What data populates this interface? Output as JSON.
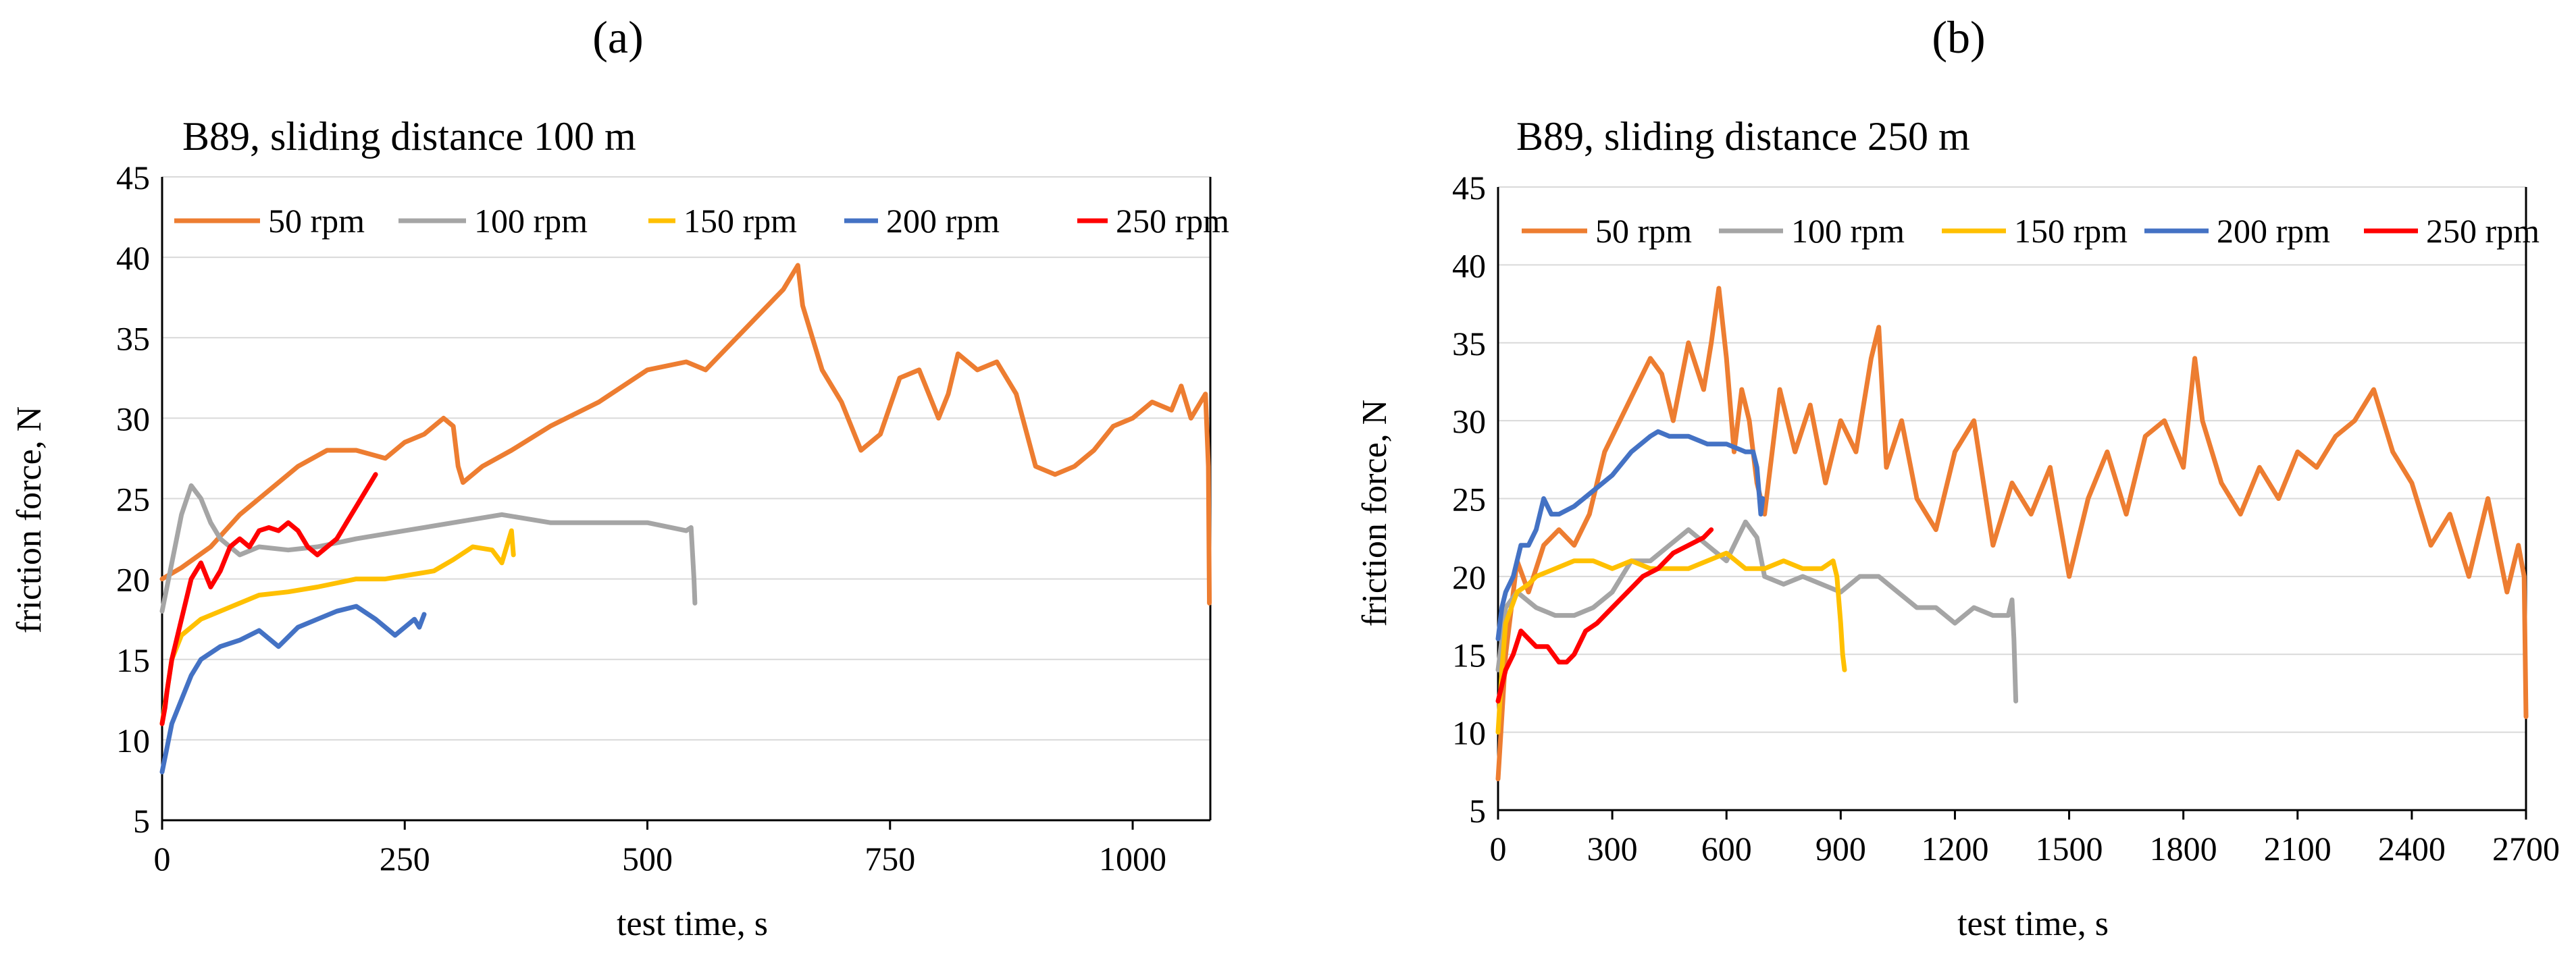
{
  "colors": {
    "50 rpm": "#ed7d31",
    "100 rpm": "#a5a5a5",
    "150 rpm": "#ffc000",
    "200 rpm": "#4472c4",
    "250 rpm": "#ff0000",
    "grid": "#d9d9d9",
    "axis": "#000000"
  },
  "chart_data": [
    {
      "type": "line",
      "panel_label": "(a)",
      "title": "B89, sliding distance 100 m",
      "xlabel": "test time, s",
      "ylabel": "friction force, N",
      "xlim": [
        0,
        1080
      ],
      "ylim": [
        5,
        45
      ],
      "xticks": [
        0,
        250,
        500,
        750,
        1000
      ],
      "xtick_labels": [
        "0",
        "250",
        "500",
        "750",
        "1000"
      ],
      "yticks": [
        5,
        10,
        15,
        20,
        25,
        30,
        35,
        40,
        45
      ],
      "ytick_labels": [
        "5",
        "10",
        "15",
        "20",
        "25",
        "30",
        "35",
        "40",
        "45"
      ],
      "grid": "horizontal",
      "legend": "top",
      "series": [
        {
          "name": "50 rpm",
          "color_key": "50 rpm",
          "x": [
            0,
            20,
            50,
            80,
            110,
            140,
            170,
            200,
            230,
            250,
            270,
            290,
            300,
            305,
            310,
            330,
            360,
            400,
            450,
            500,
            540,
            560,
            600,
            640,
            655,
            660,
            670,
            680,
            700,
            720,
            740,
            760,
            780,
            800,
            810,
            820,
            840,
            860,
            880,
            900,
            920,
            940,
            960,
            980,
            1000,
            1020,
            1040,
            1050,
            1060,
            1070,
            1075,
            1078,
            1079
          ],
          "y": [
            20,
            20.7,
            22,
            24,
            25.5,
            27,
            28,
            28,
            27.5,
            28.5,
            29,
            30,
            29.5,
            27,
            26,
            27,
            28,
            29.5,
            31,
            33,
            33.5,
            33,
            35.5,
            38,
            39.5,
            37,
            35,
            33,
            31,
            28,
            29,
            32.5,
            33,
            30,
            31.5,
            34,
            33,
            33.5,
            31.5,
            27,
            26.5,
            27,
            28,
            29.5,
            30,
            31,
            30.5,
            32,
            30,
            31,
            31.5,
            27,
            18.5
          ]
        },
        {
          "name": "100 rpm",
          "color_key": "100 rpm",
          "x": [
            0,
            10,
            20,
            30,
            40,
            50,
            60,
            80,
            100,
            130,
            160,
            200,
            250,
            300,
            350,
            400,
            450,
            500,
            540,
            545,
            548,
            549
          ],
          "y": [
            18,
            21,
            24,
            25.8,
            25,
            23.5,
            22.5,
            21.5,
            22,
            21.8,
            22,
            22.5,
            23,
            23.5,
            24,
            23.5,
            23.5,
            23.5,
            23,
            23.2,
            20,
            18.5
          ]
        },
        {
          "name": "150 rpm",
          "color_key": "150 rpm",
          "x": [
            0,
            5,
            10,
            20,
            40,
            60,
            80,
            100,
            130,
            160,
            200,
            230,
            260,
            280,
            300,
            320,
            340,
            350,
            355,
            360,
            362
          ],
          "y": [
            11,
            13,
            15,
            16.5,
            17.5,
            18,
            18.5,
            19,
            19.2,
            19.5,
            20,
            20,
            20.3,
            20.5,
            21.2,
            22,
            21.8,
            21,
            22,
            23,
            21.5
          ]
        },
        {
          "name": "200 rpm",
          "color_key": "200 rpm",
          "x": [
            0,
            5,
            10,
            20,
            30,
            40,
            60,
            80,
            100,
            120,
            140,
            160,
            180,
            200,
            220,
            240,
            250,
            260,
            265,
            270
          ],
          "y": [
            8,
            9.5,
            11,
            12.5,
            14,
            15,
            15.8,
            16.2,
            16.8,
            15.8,
            17,
            17.5,
            18,
            18.3,
            17.5,
            16.5,
            17,
            17.5,
            17,
            17.8
          ]
        },
        {
          "name": "250 rpm",
          "color_key": "250 rpm",
          "x": [
            0,
            3,
            5,
            10,
            20,
            30,
            40,
            50,
            60,
            70,
            80,
            90,
            100,
            110,
            120,
            130,
            140,
            150,
            160,
            170,
            180,
            190,
            200,
            210,
            220
          ],
          "y": [
            11,
            12,
            13,
            15,
            17.5,
            20,
            21,
            19.5,
            20.5,
            22,
            22.5,
            22,
            23,
            23.2,
            23,
            23.5,
            23,
            22,
            21.5,
            22,
            22.5,
            23.5,
            24.5,
            25.5,
            26.5
          ]
        }
      ]
    },
    {
      "type": "line",
      "panel_label": "(b)",
      "title": "B89, sliding distance 250 m",
      "xlabel": "test time, s",
      "ylabel": "friction force, N",
      "xlim": [
        0,
        2700
      ],
      "ylim": [
        5,
        45
      ],
      "xticks": [
        0,
        300,
        600,
        900,
        1200,
        1500,
        1800,
        2100,
        2400,
        2700
      ],
      "xtick_labels": [
        "0",
        "300",
        "600",
        "900",
        "1200",
        "1500",
        "1800",
        "2100",
        "2400",
        "2700"
      ],
      "yticks": [
        5,
        10,
        15,
        20,
        25,
        30,
        35,
        40,
        45
      ],
      "ytick_labels": [
        "5",
        "10",
        "15",
        "20",
        "25",
        "30",
        "35",
        "40",
        "45"
      ],
      "grid": "horizontal",
      "legend": "top",
      "series": [
        {
          "name": "50 rpm",
          "color_key": "50 rpm",
          "x": [
            0,
            20,
            50,
            80,
            120,
            160,
            200,
            240,
            280,
            320,
            360,
            400,
            430,
            460,
            500,
            540,
            560,
            580,
            600,
            620,
            640,
            660,
            680,
            700,
            740,
            780,
            820,
            860,
            900,
            940,
            980,
            1000,
            1020,
            1060,
            1100,
            1150,
            1200,
            1250,
            1300,
            1350,
            1400,
            1450,
            1500,
            1550,
            1600,
            1650,
            1700,
            1750,
            1800,
            1830,
            1850,
            1900,
            1950,
            2000,
            2050,
            2100,
            2150,
            2200,
            2250,
            2300,
            2350,
            2400,
            2450,
            2500,
            2550,
            2600,
            2650,
            2680,
            2695,
            2700
          ],
          "y": [
            7,
            15,
            21,
            19,
            22,
            23,
            22,
            24,
            28,
            30,
            32,
            34,
            33,
            30,
            35,
            32,
            35,
            38.5,
            34,
            28,
            32,
            30,
            26,
            24,
            32,
            28,
            31,
            26,
            30,
            28,
            34,
            36,
            27,
            30,
            25,
            23,
            28,
            30,
            22,
            26,
            24,
            27,
            20,
            25,
            28,
            24,
            29,
            30,
            27,
            34,
            30,
            26,
            24,
            27,
            25,
            28,
            27,
            29,
            30,
            32,
            28,
            26,
            22,
            24,
            20,
            25,
            19,
            22,
            20,
            11
          ]
        },
        {
          "name": "100 rpm",
          "color_key": "100 rpm",
          "x": [
            0,
            20,
            50,
            100,
            150,
            200,
            250,
            300,
            350,
            400,
            450,
            500,
            550,
            600,
            650,
            680,
            700,
            750,
            800,
            850,
            900,
            950,
            1000,
            1050,
            1100,
            1150,
            1200,
            1250,
            1300,
            1340,
            1350,
            1355,
            1360
          ],
          "y": [
            14,
            18,
            19,
            18,
            17.5,
            17.5,
            18,
            19,
            21,
            21,
            22,
            23,
            22,
            21,
            23.5,
            22.5,
            20,
            19.5,
            20,
            19.5,
            19,
            20,
            20,
            19,
            18,
            18,
            17,
            18,
            17.5,
            17.5,
            18.5,
            16,
            12
          ]
        },
        {
          "name": "150 rpm",
          "color_key": "150 rpm",
          "x": [
            0,
            10,
            20,
            50,
            80,
            100,
            150,
            200,
            250,
            300,
            350,
            400,
            450,
            500,
            550,
            600,
            650,
            700,
            750,
            800,
            850,
            880,
            890,
            900,
            905,
            910
          ],
          "y": [
            10,
            14,
            17,
            19,
            19.5,
            20,
            20.5,
            21,
            21,
            20.5,
            21,
            20.5,
            20.5,
            20.5,
            21,
            21.5,
            20.5,
            20.5,
            21,
            20.5,
            20.5,
            21,
            20,
            17,
            15,
            14
          ]
        },
        {
          "name": "200 rpm",
          "color_key": "200 rpm",
          "x": [
            0,
            10,
            20,
            40,
            60,
            80,
            100,
            120,
            140,
            160,
            200,
            250,
            300,
            350,
            400,
            420,
            450,
            500,
            550,
            600,
            650,
            670,
            680,
            690,
            695
          ],
          "y": [
            16,
            18,
            19,
            20,
            22,
            22,
            23,
            25,
            24,
            24,
            24.5,
            25.5,
            26.5,
            28,
            29,
            29.3,
            29,
            29,
            28.5,
            28.5,
            28,
            28,
            27,
            24,
            25
          ]
        },
        {
          "name": "250 rpm",
          "color_key": "250 rpm",
          "x": [
            0,
            10,
            20,
            40,
            60,
            80,
            100,
            130,
            160,
            180,
            200,
            230,
            260,
            300,
            340,
            380,
            420,
            460,
            500,
            540,
            560
          ],
          "y": [
            12,
            13,
            14,
            15,
            16.5,
            16,
            15.5,
            15.5,
            14.5,
            14.5,
            15,
            16.5,
            17,
            18,
            19,
            20,
            20.5,
            21.5,
            22,
            22.5,
            23
          ]
        }
      ]
    }
  ]
}
